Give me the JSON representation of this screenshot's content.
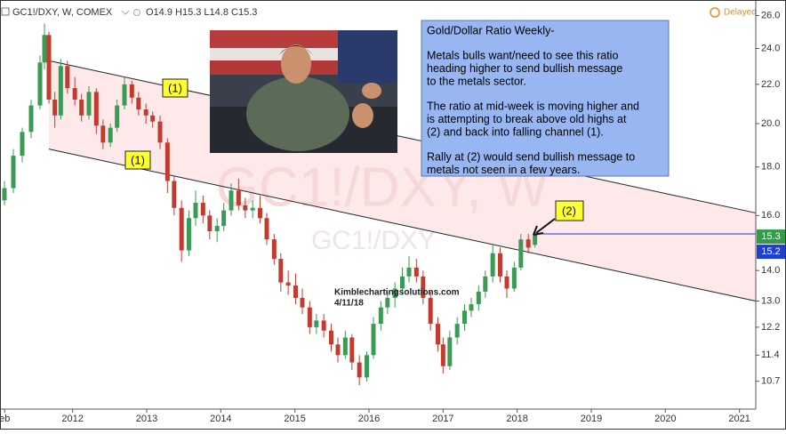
{
  "chart_data": {
    "type": "candlestick",
    "symbol": "GC1!/DXY, W, COMEX",
    "ohlc_header": "O14.9 H15.3 L14.8 C15.3",
    "status": "Delayed",
    "watermark": "GC1!/DXY, W",
    "watermark_small": "GC1!/DXY",
    "credit": "Kimblechartingsolutions.com",
    "credit_date": "4/11/18",
    "annotation": {
      "title": "Gold/Dollar Ratio Weekly-",
      "paragraphs": [
        [
          "Metals bulls want/need to see this ratio",
          "heading higher to send bullish message",
          "to the metals sector."
        ],
        [
          "The ratio at mid-week is moving higher and",
          "is attempting to break above old highs at",
          "(2) and back into falling channel (1)."
        ],
        [
          "Rally at (2) would send bullish message to",
          "metals not seen in a few years."
        ]
      ]
    },
    "callouts": [
      "(1)",
      "(1)",
      "(2)"
    ],
    "up_color": "#3a9a56",
    "down_color": "#c23b2e",
    "log_scale": true,
    "grid": false,
    "x": [
      2011.08,
      2011.2,
      2011.32,
      2011.44,
      2011.56,
      2011.62,
      2011.68,
      2011.76,
      2011.84,
      2011.93,
      2012.03,
      2012.12,
      2012.22,
      2012.32,
      2012.41,
      2012.51,
      2012.6,
      2012.7,
      2012.8,
      2012.89,
      2012.99,
      2013.08,
      2013.18,
      2013.28,
      2013.37,
      2013.47,
      2013.57,
      2013.66,
      2013.76,
      2013.85,
      2013.95,
      2014.04,
      2014.14,
      2014.24,
      2014.33,
      2014.43,
      2014.53,
      2014.62,
      2014.72,
      2014.81,
      2014.91,
      2015.01,
      2015.1,
      2015.2,
      2015.29,
      2015.39,
      2015.49,
      2015.58,
      2015.68,
      2015.77,
      2015.87,
      2015.97,
      2016.06,
      2016.16,
      2016.25,
      2016.35,
      2016.45,
      2016.54,
      2016.64,
      2016.73,
      2016.83,
      2016.93,
      2017.0,
      2017.09,
      2017.19,
      2017.29,
      2017.38,
      2017.48,
      2017.57,
      2017.67,
      2017.77,
      2017.86,
      2017.96,
      2018.05,
      2018.15,
      2018.24
    ],
    "open": [
      16.6,
      17.1,
      18.5,
      19.6,
      20.9,
      23.2,
      24.8,
      21.2,
      20.4,
      23.0,
      21.8,
      21.2,
      20.4,
      21.6,
      19.9,
      19.1,
      19.8,
      20.9,
      22.0,
      21.3,
      20.7,
      20.4,
      20.1,
      19.1,
      17.4,
      16.3,
      14.7,
      15.9,
      16.5,
      16.0,
      15.4,
      15.6,
      16.2,
      17.0,
      16.4,
      16.2,
      16.3,
      15.9,
      15.1,
      14.4,
      13.6,
      13.5,
      13.1,
      12.8,
      12.2,
      12.4,
      12.1,
      11.7,
      11.4,
      11.9,
      11.2,
      10.8,
      11.4,
      12.3,
      12.8,
      13.1,
      13.4,
      13.8,
      14.1,
      13.8,
      13.1,
      12.3,
      11.7,
      11.1,
      11.9,
      12.3,
      12.7,
      12.9,
      13.3,
      13.8,
      14.6,
      13.8,
      13.4,
      14.1,
      15.1,
      14.9
    ],
    "high": [
      17.4,
      18.8,
      19.8,
      21.2,
      23.6,
      25.5,
      25.0,
      21.6,
      23.4,
      23.3,
      22.4,
      21.5,
      21.9,
      21.8,
      20.2,
      20.0,
      21.2,
      22.4,
      22.2,
      21.6,
      21.0,
      20.6,
      20.4,
      19.3,
      17.6,
      16.6,
      16.2,
      17.0,
      16.8,
      16.2,
      15.9,
      16.5,
      17.3,
      17.5,
      16.7,
      16.6,
      16.8,
      16.1,
      15.3,
      14.6,
      14.0,
      13.9,
      13.4,
      13.0,
      12.6,
      12.6,
      12.3,
      11.9,
      12.1,
      12.0,
      11.4,
      11.5,
      12.5,
      13.0,
      13.3,
      13.6,
      14.1,
      14.5,
      14.4,
      14.0,
      13.3,
      12.5,
      11.9,
      12.1,
      12.5,
      12.9,
      13.1,
      13.5,
      14.0,
      14.9,
      14.8,
      14.0,
      14.3,
      15.3,
      15.3,
      15.3
    ],
    "low": [
      16.4,
      16.9,
      18.2,
      19.3,
      20.7,
      22.8,
      21.0,
      19.8,
      20.2,
      21.5,
      20.9,
      20.1,
      20.2,
      19.5,
      18.8,
      18.9,
      19.6,
      20.7,
      21.0,
      20.4,
      20.0,
      19.8,
      18.8,
      16.9,
      16.0,
      14.3,
      14.5,
      15.6,
      15.7,
      15.1,
      15.0,
      15.4,
      16.0,
      16.2,
      15.9,
      15.9,
      15.7,
      14.9,
      14.2,
      13.3,
      13.2,
      12.9,
      12.6,
      12.0,
      12.0,
      11.9,
      11.5,
      11.2,
      11.3,
      11.0,
      10.6,
      10.7,
      11.3,
      12.1,
      12.6,
      12.8,
      13.2,
      13.6,
      13.6,
      12.9,
      12.1,
      11.5,
      10.9,
      11.0,
      11.7,
      12.1,
      12.5,
      12.7,
      13.1,
      13.6,
      13.6,
      13.1,
      13.3,
      14.0,
      14.6,
      14.8
    ],
    "close": [
      17.1,
      18.5,
      19.6,
      20.9,
      23.2,
      24.8,
      21.2,
      20.4,
      23.0,
      21.8,
      21.2,
      20.4,
      21.6,
      19.9,
      19.1,
      19.8,
      20.9,
      22.0,
      21.3,
      20.7,
      20.4,
      20.1,
      19.1,
      17.4,
      16.3,
      14.7,
      15.9,
      16.5,
      16.0,
      15.4,
      15.6,
      16.2,
      17.0,
      16.4,
      16.2,
      16.3,
      15.9,
      15.1,
      14.4,
      13.6,
      13.5,
      13.1,
      12.8,
      12.2,
      12.4,
      12.1,
      11.7,
      11.4,
      11.9,
      11.2,
      10.8,
      11.4,
      12.3,
      12.8,
      13.1,
      13.4,
      13.8,
      14.1,
      13.8,
      13.1,
      12.3,
      11.7,
      11.1,
      11.9,
      12.3,
      12.7,
      12.9,
      13.3,
      13.8,
      14.6,
      13.8,
      13.4,
      14.1,
      15.1,
      14.8,
      15.3
    ],
    "channel": [
      {
        "x": [
          2011.68,
          2021.22
        ],
        "y": [
          23.3,
          16.1
        ]
      },
      {
        "x": [
          2011.68,
          2021.22
        ],
        "y": [
          18.8,
          13.0
        ]
      }
    ],
    "channel_color": "#fde3e3",
    "price_line": {
      "value": 15.3,
      "color": "#2233cc"
    },
    "price_labels": [
      {
        "value": 15.3,
        "color": "#2e9e48"
      },
      {
        "value": 15.2,
        "color": "#1f3fd0"
      }
    ],
    "xlim": [
      2011.02,
      2021.22
    ],
    "xticks": [
      {
        "value": 2011.083,
        "label": "eb"
      },
      2012,
      2013,
      2014,
      2015,
      2016,
      2017,
      2018,
      2019,
      2020,
      2021
    ],
    "ylim": [
      10.0,
      27.0
    ],
    "yticks": [
      {
        "value": 26,
        "label": "26.0"
      },
      {
        "value": 24,
        "label": "24.0"
      },
      {
        "value": 22,
        "label": "22.0"
      },
      {
        "value": 20,
        "label": "20.0"
      },
      {
        "value": 18,
        "label": "18.0"
      },
      {
        "value": 16,
        "label": "16.0"
      },
      {
        "value": 14,
        "label": "14.0"
      },
      {
        "value": 13,
        "label": "13.0"
      },
      12.2,
      11.4,
      10.7
    ]
  }
}
